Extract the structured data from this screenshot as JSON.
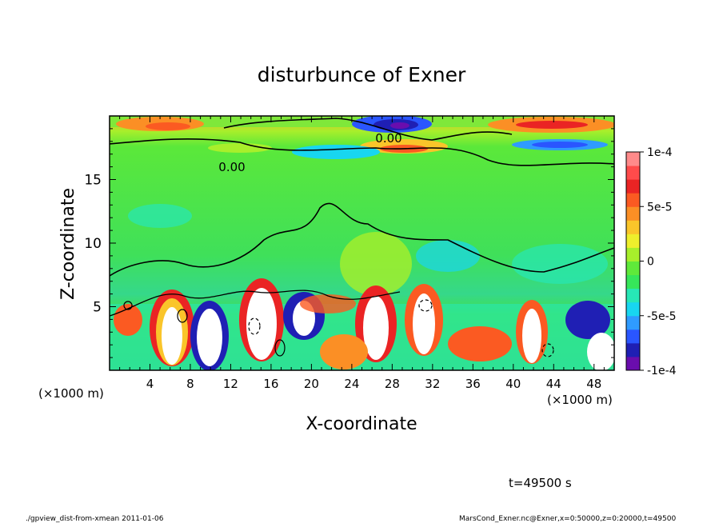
{
  "chart_data": {
    "type": "heatmap",
    "title": "disturbunce of Exner",
    "xlabel": "X-coordinate",
    "ylabel": "Z-coordinate",
    "x_unit_left": "(×1000 m)",
    "x_unit_right": "(×1000 m)",
    "xlim": [
      0,
      50
    ],
    "ylim": [
      0,
      20
    ],
    "x_ticks": [
      4,
      8,
      12,
      16,
      20,
      24,
      28,
      32,
      36,
      40,
      44,
      48
    ],
    "y_ticks": [
      5,
      10,
      15
    ],
    "contour_labels": [
      "0.00",
      "0.00"
    ],
    "colorbar": {
      "range": [
        -0.0001,
        0.0001
      ],
      "tick_labels": [
        "1e-4",
        "5e-5",
        "0",
        "-5e-5",
        "-1e-4"
      ],
      "colors": [
        "#6a0dad",
        "#1f1fb4",
        "#2a56ff",
        "#2f9bff",
        "#18d6f0",
        "#27e7b6",
        "#36e65a",
        "#5fe93a",
        "#a7ef2b",
        "#eeef2c",
        "#fac52a",
        "#fb8f25",
        "#fb5a22",
        "#ea2424",
        "#ff4b4b",
        "#ff8a8a"
      ]
    },
    "time_label": "t=49500 s"
  },
  "footer": {
    "left": "./gpview_dist-from-xmean  2011-01-06",
    "right": "MarsCond_Exner.nc@Exner,x=0:50000,z=0:20000,t=49500"
  }
}
